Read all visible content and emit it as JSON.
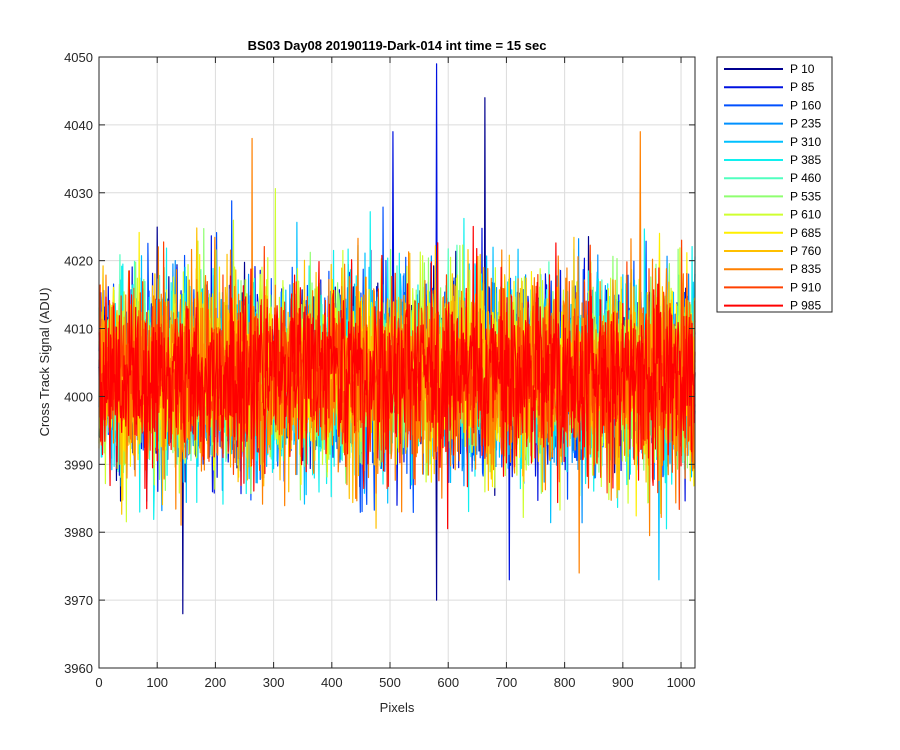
{
  "chart_data": {
    "type": "line",
    "title": "BS03 Day08 20190119-Dark-014 int time = 15 sec",
    "xlabel": "Pixels",
    "ylabel": "Cross Track Signal (ADU)",
    "xlim": [
      0,
      1024
    ],
    "ylim": [
      3960,
      4050
    ],
    "xticks": [
      0,
      100,
      200,
      300,
      400,
      500,
      600,
      700,
      800,
      900,
      1000
    ],
    "yticks": [
      3960,
      3970,
      3980,
      3990,
      4000,
      4010,
      4020,
      4030,
      4040,
      4050
    ],
    "grid": true,
    "legend_position": "outside-top-right",
    "series": [
      {
        "name": "P 10",
        "color": "#00008f"
      },
      {
        "name": "P 85",
        "color": "#0012e0"
      },
      {
        "name": "P 160",
        "color": "#0050ff"
      },
      {
        "name": "P 235",
        "color": "#0090ff"
      },
      {
        "name": "P 310",
        "color": "#00c0ff"
      },
      {
        "name": "P 385",
        "color": "#10f0ef"
      },
      {
        "name": "P 460",
        "color": "#50ffbf"
      },
      {
        "name": "P 535",
        "color": "#8fff70"
      },
      {
        "name": "P 610",
        "color": "#cfff30"
      },
      {
        "name": "P 685",
        "color": "#ffef00"
      },
      {
        "name": "P 760",
        "color": "#ffc000"
      },
      {
        "name": "P 835",
        "color": "#ff8000"
      },
      {
        "name": "P 910",
        "color": "#ff4000"
      },
      {
        "name": "P 985",
        "color": "#ff0000"
      }
    ],
    "signal_mean": 4003,
    "signal_noise_std": 7,
    "notable_spikes": [
      {
        "x": 144,
        "y": 3968,
        "series": "P 10"
      },
      {
        "x": 505,
        "y": 4039,
        "series": "P 85"
      },
      {
        "x": 580,
        "y": 4049,
        "series": "P 85"
      },
      {
        "x": 580,
        "y": 3970,
        "series": "P 10"
      },
      {
        "x": 663,
        "y": 4044,
        "series": "P 10"
      },
      {
        "x": 705,
        "y": 3973,
        "series": "P 85"
      },
      {
        "x": 930,
        "y": 4039,
        "series": "P 835"
      },
      {
        "x": 263,
        "y": 4038,
        "series": "P 835"
      },
      {
        "x": 962,
        "y": 3973,
        "series": "P 310"
      },
      {
        "x": 825,
        "y": 3974,
        "series": "P 835"
      }
    ]
  }
}
